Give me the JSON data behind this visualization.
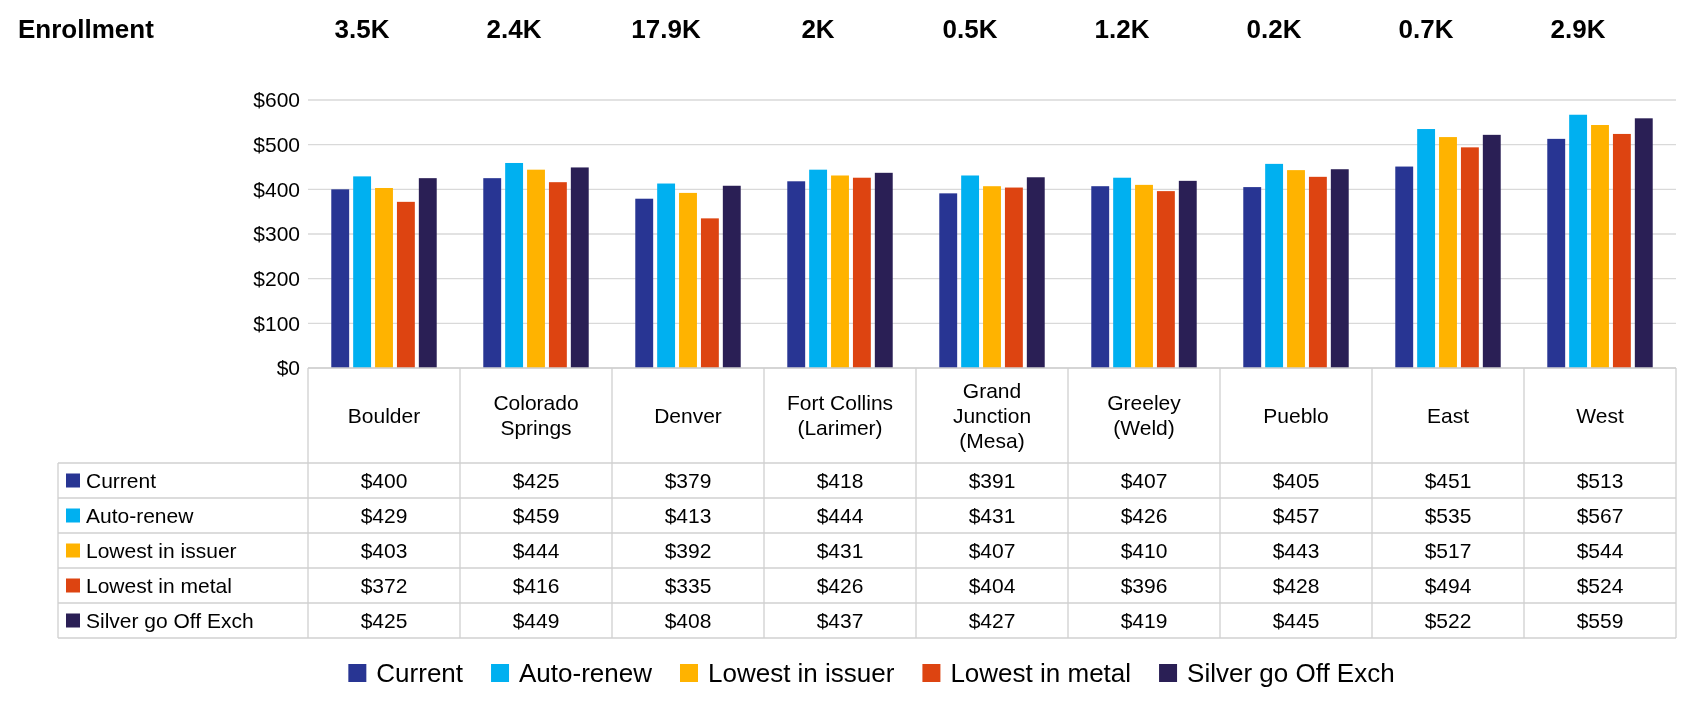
{
  "chart_data": {
    "type": "bar",
    "categories": [
      "Boulder",
      "Colorado Springs",
      "Denver",
      "Fort Collins (Larimer)",
      "Grand Junction (Mesa)",
      "Greeley (Weld)",
      "Pueblo",
      "East",
      "West"
    ],
    "series": [
      {
        "name": "Current",
        "color": "#283593",
        "values": [
          400,
          425,
          379,
          418,
          391,
          407,
          405,
          451,
          513
        ],
        "value_labels": [
          "$400",
          "$425",
          "$379",
          "$418",
          "$391",
          "$407",
          "$405",
          "$451",
          "$513"
        ]
      },
      {
        "name": "Auto-renew",
        "color": "#00b0f0",
        "values": [
          429,
          459,
          413,
          444,
          431,
          426,
          457,
          535,
          567
        ],
        "value_labels": [
          "$429",
          "$459",
          "$413",
          "$444",
          "$431",
          "$426",
          "$457",
          "$535",
          "$567"
        ]
      },
      {
        "name": "Lowest in issuer",
        "color": "#ffb300",
        "values": [
          403,
          444,
          392,
          431,
          407,
          410,
          443,
          517,
          544
        ],
        "value_labels": [
          "$403",
          "$444",
          "$392",
          "$431",
          "$407",
          "$410",
          "$443",
          "$517",
          "$544"
        ]
      },
      {
        "name": "Lowest in metal",
        "color": "#dd4411",
        "values": [
          372,
          416,
          335,
          426,
          404,
          396,
          428,
          494,
          524
        ],
        "value_labels": [
          "$372",
          "$416",
          "$335",
          "$426",
          "$404",
          "$396",
          "$428",
          "$494",
          "$524"
        ]
      },
      {
        "name": "Silver go Off Exch",
        "color": "#2a1f55",
        "values": [
          425,
          449,
          408,
          437,
          427,
          419,
          445,
          522,
          559
        ],
        "value_labels": [
          "$425",
          "$449",
          "$408",
          "$437",
          "$427",
          "$419",
          "$445",
          "$522",
          "$559"
        ]
      }
    ],
    "ylim": [
      0,
      600
    ],
    "yticks": [
      {
        "value": 0,
        "label": "$0"
      },
      {
        "value": 100,
        "label": "$100"
      },
      {
        "value": 200,
        "label": "$200"
      },
      {
        "value": 300,
        "label": "$300"
      },
      {
        "value": 400,
        "label": "$400"
      },
      {
        "value": 500,
        "label": "$500"
      },
      {
        "value": 600,
        "label": "$600"
      }
    ],
    "grid": "y",
    "legend": "bottom",
    "annotations": [
      "Enrollment",
      "3.5K",
      "2.4K",
      "17.9K",
      "2K",
      "0.5K",
      "1.2K",
      "0.2K",
      "0.7K",
      "2.9K"
    ]
  }
}
